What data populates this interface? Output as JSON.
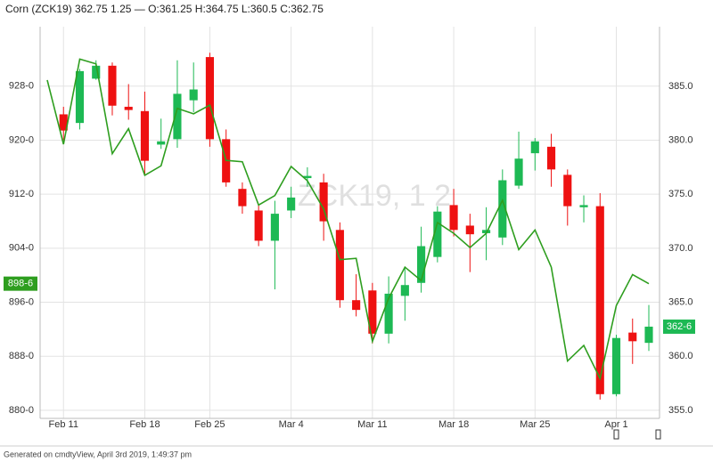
{
  "chart_data": {
    "type": "candlestick",
    "title": "Corn (ZCK19) 362.75 1.25 — O:361.25 H:364.75 L:360.5 C:362.75",
    "watermark": "ZCK19, 1 2",
    "footer": "Generated on cmdtyView, April 3rd 2019, 1:49:37 pm",
    "categories": [
      null,
      "Feb 11",
      null,
      null,
      null,
      null,
      "Feb 18",
      null,
      null,
      null,
      "Feb 25",
      null,
      null,
      null,
      null,
      "Mar 4",
      null,
      null,
      null,
      null,
      "Mar 11",
      null,
      null,
      null,
      null,
      "Mar 18",
      null,
      null,
      null,
      null,
      "Mar 25",
      null,
      null,
      null,
      null,
      "Apr 1",
      null,
      null
    ],
    "ylim": [
      878.8,
      936.8
    ],
    "yticks": [
      {
        "value": 880,
        "label": "880-0"
      },
      {
        "value": 888,
        "label": "888-0"
      },
      {
        "value": 896,
        "label": "896-0"
      },
      {
        "value": 904,
        "label": "904-0"
      },
      {
        "value": 912,
        "label": "912-0"
      },
      {
        "value": 920,
        "label": "920-0"
      },
      {
        "value": 928,
        "label": "928-0"
      }
    ],
    "y2lim": [
      354.26,
      390.51
    ],
    "y2ticks": [
      {
        "value": 355,
        "label": "355.0"
      },
      {
        "value": 360,
        "label": "360.0"
      },
      {
        "value": 365,
        "label": "365.0"
      },
      {
        "value": 370,
        "label": "370.0"
      },
      {
        "value": 375,
        "label": "375.0"
      },
      {
        "value": 380,
        "label": "380.0"
      },
      {
        "value": 385,
        "label": "385.0"
      }
    ],
    "grid": true,
    "ohlc": {
      "axis": "y2",
      "up_color": "#1db954",
      "down_color": "#ee1111",
      "open": [
        null,
        382.4,
        381.6,
        385.7,
        386.9,
        383.1,
        382.7,
        379.6,
        380.1,
        383.7,
        387.7,
        380.1,
        375.5,
        373.5,
        370.7,
        373.5,
        376.5,
        376.1,
        371.7,
        365.2,
        366.1,
        362.1,
        365.6,
        366.8,
        369.2,
        374.0,
        372.1,
        371.4,
        371.0,
        375.8,
        378.8,
        379.4,
        376.8,
        373.8,
        373.9,
        356.5,
        362.2,
        361.25
      ],
      "high": [
        null,
        383.1,
        386.6,
        387.4,
        387.2,
        385.2,
        384.5,
        382.0,
        387.4,
        387.2,
        388.1,
        381.0,
        376.1,
        374.0,
        374.4,
        375.7,
        377.5,
        376.9,
        372.4,
        367.6,
        366.8,
        367.4,
        368.3,
        372.0,
        373.9,
        375.5,
        373.2,
        373.8,
        377.3,
        380.8,
        380.2,
        380.6,
        377.3,
        374.9,
        375.1,
        362.0,
        363.5,
        364.75
      ],
      "low": [
        null,
        380.0,
        381.0,
        385.6,
        382.3,
        381.9,
        376.8,
        379.2,
        379.3,
        382.6,
        379.4,
        375.7,
        373.2,
        370.2,
        366.2,
        372.8,
        375.7,
        370.7,
        364.5,
        363.7,
        361.2,
        361.2,
        363.3,
        365.9,
        368.7,
        371.1,
        367.8,
        368.9,
        370.3,
        375.5,
        377.2,
        375.7,
        372.1,
        372.4,
        356.0,
        356.3,
        359.3,
        360.5
      ],
      "close": [
        null,
        380.9,
        386.4,
        386.9,
        383.2,
        382.8,
        378.1,
        379.9,
        384.3,
        384.7,
        380.1,
        376.1,
        373.9,
        370.7,
        373.2,
        374.7,
        376.7,
        372.5,
        365.2,
        364.3,
        362.1,
        365.8,
        366.6,
        370.2,
        373.4,
        371.7,
        371.3,
        371.7,
        376.3,
        378.3,
        379.9,
        377.3,
        373.9,
        374.0,
        356.5,
        361.7,
        361.4,
        362.75
      ],
      "last_label": "362-6"
    },
    "line": {
      "axis": "y",
      "color": "#2e9e1f",
      "values": [
        928.9,
        919.4,
        932.0,
        931.3,
        918.0,
        921.7,
        914.8,
        916.2,
        924.7,
        923.9,
        925.2,
        917.0,
        916.8,
        910.4,
        911.8,
        916.1,
        914.0,
        909.8,
        902.3,
        902.5,
        890.2,
        896.6,
        901.2,
        899.2,
        907.8,
        906.2,
        904.1,
        906.2,
        911.1,
        903.8,
        906.7,
        901.2,
        887.3,
        889.6,
        884.7,
        895.5,
        900.1,
        898.75
      ],
      "last_label": "898-6"
    }
  }
}
